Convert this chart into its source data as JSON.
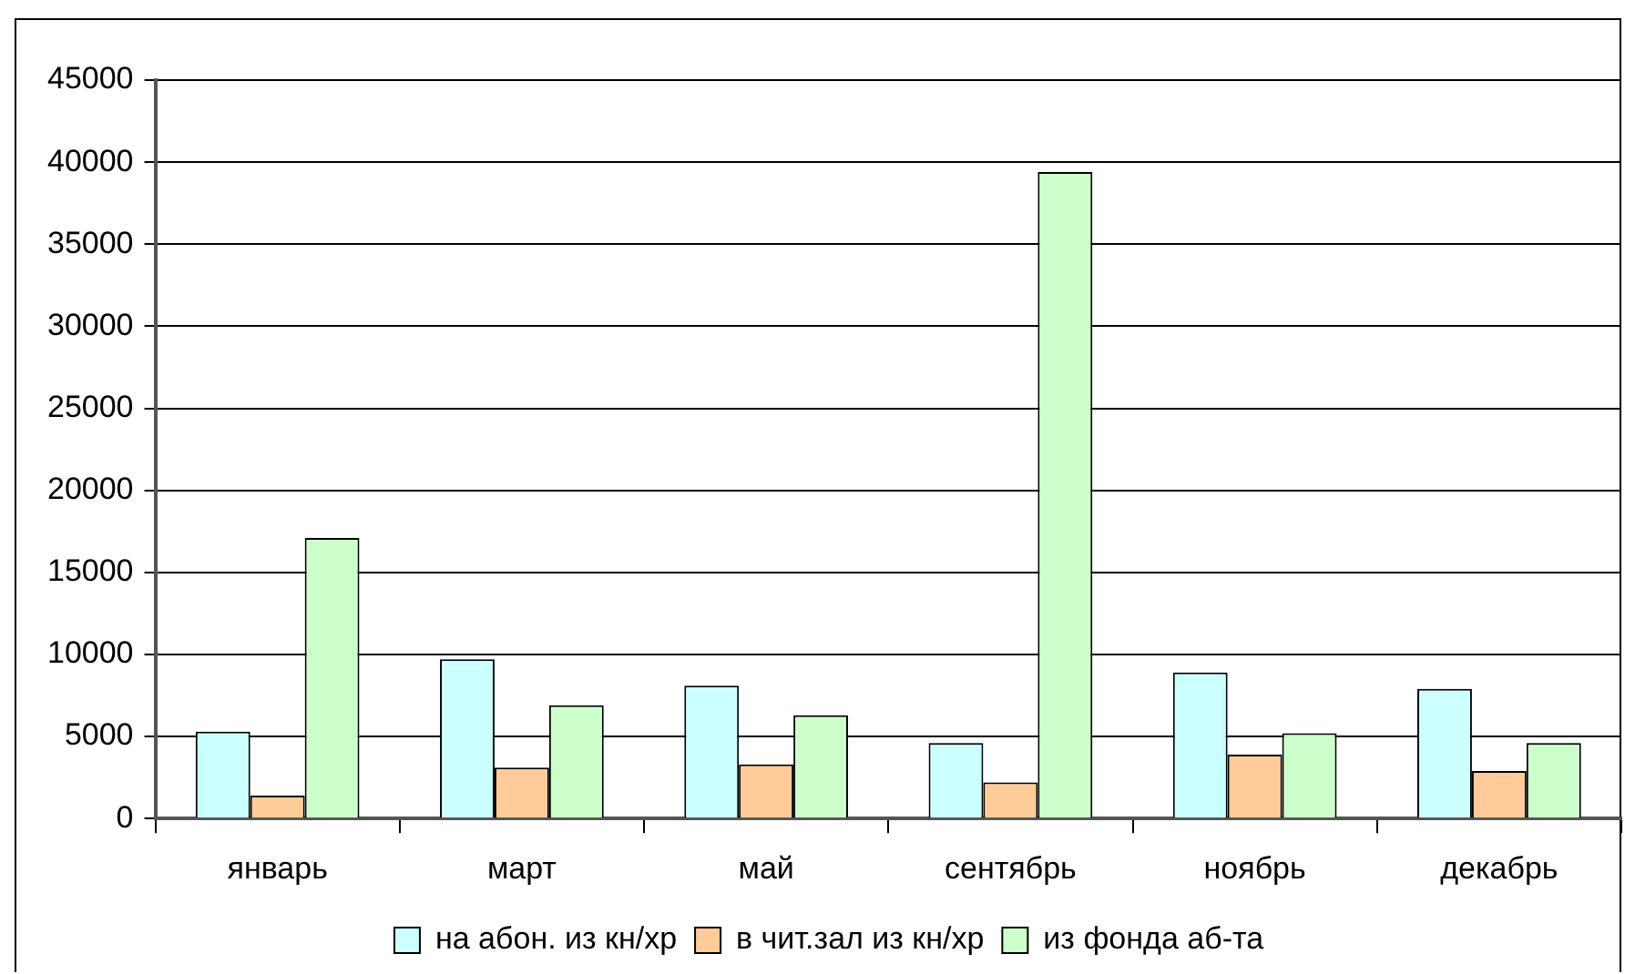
{
  "chart_data": {
    "type": "bar",
    "categories": [
      "январь",
      "март",
      "май",
      "сентябрь",
      "ноябрь",
      "декабрь"
    ],
    "series": [
      {
        "name": "на абон. из кн/хр",
        "color": "#ccffff",
        "values": [
          5300,
          9700,
          8100,
          4600,
          8900,
          7900
        ]
      },
      {
        "name": "в чит.зал из кн/хр",
        "color": "#ffcc99",
        "values": [
          1400,
          3100,
          3300,
          2200,
          3900,
          2900
        ]
      },
      {
        "name": "из фонда аб-та",
        "color": "#ccffcc",
        "values": [
          17100,
          6900,
          6300,
          39400,
          5200,
          4600
        ]
      }
    ],
    "ylim": [
      0,
      45000
    ],
    "yticks": [
      0,
      5000,
      10000,
      15000,
      20000,
      25000,
      30000,
      35000,
      40000,
      45000
    ],
    "grid": "y",
    "legend": "bottom"
  }
}
